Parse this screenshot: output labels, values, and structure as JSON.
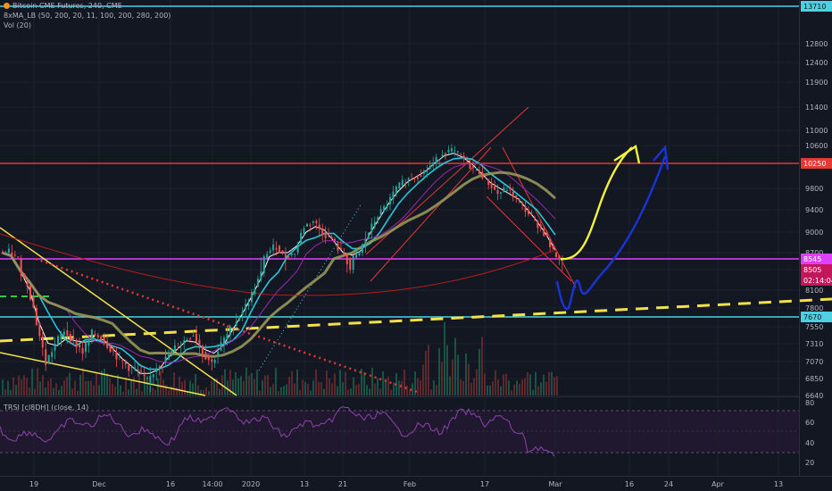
{
  "legend": {
    "title": "Bitcoin CME Futures, 240, CME",
    "indicator": "8xMA_LB (50, 200, 20, 11, 100, 200, 280, 200)",
    "volume": "Vol (20)",
    "rsi": "TRSI [cl8DH] (close, 14)"
  },
  "chart_data": {
    "type": "line",
    "price_axis": {
      "ticks": [
        "12800",
        "12400",
        "11900",
        "11400",
        "11000",
        "10600",
        "10250",
        "9800",
        "9400",
        "9000",
        "8700",
        "8545",
        "8505",
        "8100",
        "7800",
        "7670",
        "7550",
        "7310",
        "7070",
        "6850",
        "6640"
      ],
      "badges": [
        {
          "label": "13710",
          "color": "#4dd0e1",
          "text_color": "#131722"
        },
        {
          "label": "10250",
          "color": "#e53935",
          "text_color": "#ffffff"
        },
        {
          "label": "8545",
          "color": "#e040fb",
          "text_color": "#ffffff"
        },
        {
          "label": "8505",
          "color": "#c2185b",
          "text_color": "#ffffff"
        },
        {
          "label": "02:14:04",
          "color": "#c2185b",
          "text_color": "#ffffff"
        },
        {
          "label": "7670",
          "color": "#4dd0e1",
          "text_color": "#131722"
        }
      ]
    },
    "rsi_axis": {
      "ticks": [
        "80",
        "60",
        "40",
        "20"
      ]
    },
    "time_axis": {
      "ticks": [
        "19",
        "Dec",
        "16",
        "14:00",
        "2020",
        "13",
        "21",
        "Feb",
        "17",
        "Mar",
        "16",
        "24",
        "Apr",
        "13"
      ]
    },
    "levels": [
      {
        "price": 13710,
        "color": "#4dd0e1"
      },
      {
        "price": 10250,
        "color": "#e53935"
      },
      {
        "price": 8545,
        "color": "#e040fb"
      },
      {
        "price": 7670,
        "color": "#4dd0e1"
      }
    ],
    "price_series": [
      8700,
      8550,
      8200,
      7600,
      7050,
      7300,
      7500,
      7350,
      7200,
      7450,
      7400,
      7250,
      7100,
      7000,
      6950,
      6800,
      7000,
      7100,
      7250,
      7350,
      7450,
      7200,
      7050,
      7300,
      7500,
      7700,
      7900,
      8300,
      8700,
      8800,
      8600,
      8700,
      9100,
      9200,
      9000,
      8900,
      8700,
      8500,
      8700,
      9000,
      9300,
      9500,
      9800,
      9950,
      10000,
      10100,
      10250,
      10450,
      10500,
      10400,
      10200,
      10100,
      9900,
      9700,
      9800,
      9600,
      9400,
      9200,
      9000,
      8700,
      8500
    ]
  }
}
